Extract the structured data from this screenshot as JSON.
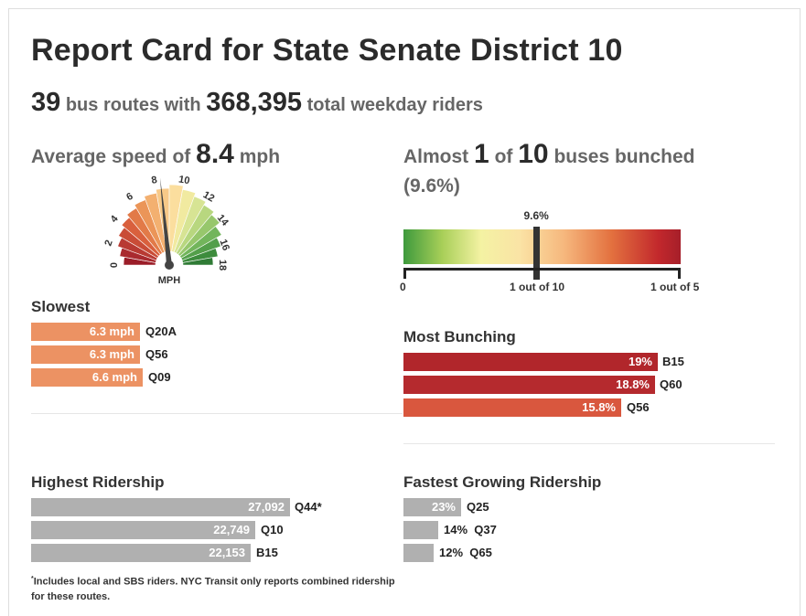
{
  "title": "Report Card for State Senate District 10",
  "summary": {
    "routes": "39",
    "routes_text": "bus routes with",
    "riders": "368,395",
    "riders_text": "total weekday riders"
  },
  "speed": {
    "prefix": "Average speed of",
    "value": "8.4",
    "unit": "mph",
    "gauge_unit": "MPH",
    "gauge_value": 8.4,
    "ticks": [
      "0",
      "2",
      "4",
      "6",
      "8",
      "10",
      "12",
      "14",
      "16",
      "18"
    ]
  },
  "bunching": {
    "prefix": "Almost",
    "num": "1",
    "of": "of",
    "den": "10",
    "suffix": "buses bunched",
    "pct": "(9.6%)",
    "marker_label": "9.6%",
    "marker_value": 9.6,
    "axis": [
      "0",
      "1 out of 10",
      "1 out of 5"
    ]
  },
  "slowest": {
    "title": "Slowest",
    "rows": [
      {
        "value": "6.3 mph",
        "route": "Q20A"
      },
      {
        "value": "6.3 mph",
        "route": "Q56"
      },
      {
        "value": "6.6 mph",
        "route": "Q09"
      }
    ]
  },
  "most_bunching": {
    "title": "Most Bunching",
    "rows": [
      {
        "value": "19%",
        "route": "B15"
      },
      {
        "value": "18.8%",
        "route": "Q60"
      },
      {
        "value": "15.8%",
        "route": "Q56"
      }
    ]
  },
  "highest_ridership": {
    "title": "Highest Ridership",
    "rows": [
      {
        "value": "27,092",
        "route": "Q44*"
      },
      {
        "value": "22,749",
        "route": "Q10"
      },
      {
        "value": "22,153",
        "route": "B15"
      }
    ]
  },
  "fastest_growing": {
    "title": "Fastest Growing Ridership",
    "rows": [
      {
        "value": "23%",
        "route": "Q25"
      },
      {
        "value": "14%",
        "route": "Q37"
      },
      {
        "value": "12%",
        "route": "Q65"
      }
    ]
  },
  "footnote": {
    "star": "*",
    "text": "Includes local and SBS riders. NYC Transit only reports combined ridership for these routes."
  },
  "colors": {
    "slow_bar": "#ec9263",
    "bunch_1": "#b1262b",
    "bunch_2": "#b52a2e",
    "bunch_3": "#d9573e",
    "ridership": "#b0b0b0"
  }
}
